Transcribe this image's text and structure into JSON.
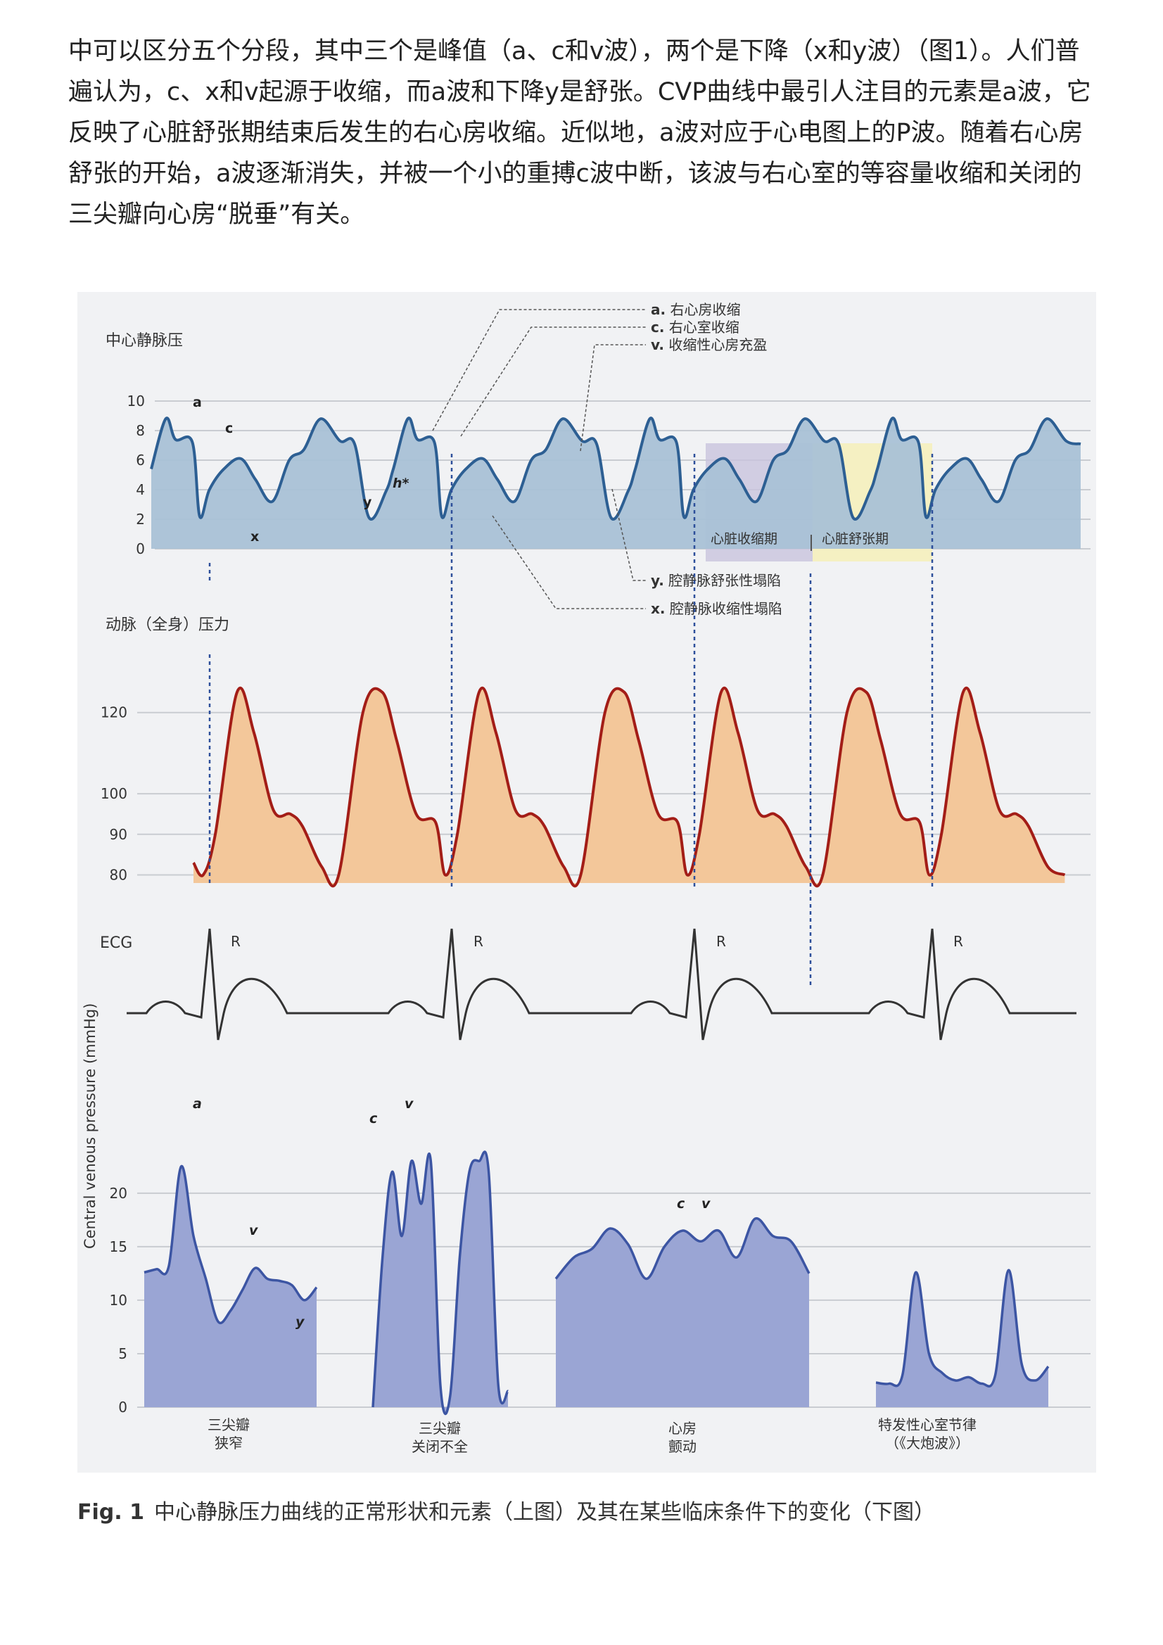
{
  "paragraph": "中可以区分五个分段，其中三个是峰值（a、c和v波），两个是下降（x和y波）（图1）。人们普遍认为，c、x和v起源于收缩，而a波和下降y是舒张。CVP曲线中最引人注目的元素是a波，它反映了心脏舒张期结束后发生的右心房收缩。近似地，a波对应于心电图上的P波。随着右心房舒张的开始，a波逐渐消失，并被一个小的重搏c波中断，该波与右心室的等容量收缩和关闭的三尖瓣向心房“脱垂”有关。",
  "figure": {
    "cvp_panel": {
      "title": "中心静脉压",
      "wave_labels": [
        "a",
        "c",
        "x",
        "y",
        "h*"
      ],
      "callouts": {
        "a": {
          "key": "a.",
          "text": "右心房收缩"
        },
        "c": {
          "key": "c.",
          "text": "右心室收缩"
        },
        "v": {
          "key": "v.",
          "text": "收缩性心房充盈"
        },
        "y": {
          "key": "y.",
          "text": "腔静脉舒张性塌陷"
        },
        "x": {
          "key": "x.",
          "text": "腔静脉收缩性塌陷"
        }
      },
      "phase_systole": "心脏收缩期",
      "phase_diastole": "心脏舒张期"
    },
    "arterial_panel": {
      "title": "动脉（全身）压力"
    },
    "ecg_panel": {
      "title": "ECG",
      "r_label": "R"
    },
    "clinical_panel": {
      "ylabel": "Central venous pressure (mmHg)",
      "labels": {
        "a": "a",
        "v": "v",
        "y": "y",
        "c": "c",
        "c2": "c",
        "v2": "v"
      },
      "groups": [
        {
          "line1": "三尖瓣",
          "line2": "狭窄"
        },
        {
          "line1": "三尖瓣",
          "line2": "关闭不全"
        },
        {
          "line1": "心房",
          "line2": "颤动"
        },
        {
          "line1": "特发性心室节律",
          "line2": "（《大炮波》）"
        }
      ]
    },
    "colors": {
      "cvp_fill": "#a9c1d6",
      "cvp_line": "#2d5f93",
      "art_fill": "#f3c79a",
      "art_line": "#a31d17",
      "ecg_line": "#333333",
      "clin_fill": "#9aa5d4",
      "clin_line": "#3c55a3",
      "diastole": "#f5f0c2",
      "systole": "#c9c3dd"
    }
  },
  "caption": {
    "label": "Fig. 1",
    "text": "中心静脉压力曲线的正常形状和元素（上图）及其在某些临床条件下的变化（下图）"
  },
  "chart_data": [
    {
      "type": "line",
      "title": "中心静脉压",
      "ylim": [
        0,
        10
      ],
      "yticks": [
        0,
        2,
        4,
        6,
        8,
        10
      ],
      "grid": true,
      "series": [
        {
          "name": "",
          "x": [
            0,
            0.06,
            0.1,
            0.17,
            0.2,
            0.24,
            0.3,
            0.37,
            0.43,
            0.5,
            0.57,
            0.63,
            0.7,
            0.78,
            0.84,
            0.9,
            0.97,
            1.0
          ],
          "values": [
            5.4,
            8.8,
            7.4,
            7.2,
            2.2,
            4.0,
            5.4,
            6.1,
            4.7,
            3.2,
            6.0,
            6.7,
            8.8,
            7.3,
            7.1,
            2.1,
            3.9,
            5.4
          ]
        }
      ],
      "annotations": [
        "a",
        "c",
        "x",
        "y",
        "h*"
      ]
    },
    {
      "type": "line",
      "title": "动脉（全身）压力",
      "ylim": [
        78,
        130
      ],
      "yticks": [
        80,
        90,
        100,
        120
      ],
      "grid": true,
      "series": [
        {
          "name": "",
          "x": [
            0,
            0.04,
            0.09,
            0.18,
            0.25,
            0.33,
            0.4,
            0.45,
            0.53,
            0.6,
            0.7,
            0.78,
            0.84,
            0.92,
            1.0
          ],
          "values": [
            83,
            80,
            90,
            125,
            115,
            96,
            95,
            92,
            82,
            80,
            120,
            125,
            113,
            95,
            93
          ]
        }
      ]
    },
    {
      "type": "line",
      "title": "ECG",
      "annotations": [
        "R",
        "R",
        "R",
        "R"
      ]
    },
    {
      "type": "area",
      "ylabel": "Central venous pressure (mmHg)",
      "ylim": [
        0,
        24
      ],
      "yticks": [
        0,
        5,
        10,
        15,
        20
      ],
      "grid": true,
      "series": [
        {
          "name": "三尖瓣狭窄",
          "values": [
            12.6,
            12.9,
            13.2,
            22.5,
            16,
            12,
            8,
            9,
            11,
            13,
            12,
            11.8,
            11.4,
            10,
            11.2
          ]
        },
        {
          "name": "三尖瓣关闭不全",
          "values": [
            0,
            14,
            22,
            16,
            23,
            19,
            23,
            2,
            1,
            14,
            22,
            23,
            22,
            2,
            1.5
          ]
        },
        {
          "name": "心房颤动",
          "values": [
            12,
            14,
            14.8,
            16.7,
            15.2,
            12,
            15,
            16.5,
            15.5,
            16.5,
            14,
            17.6,
            16,
            15.5,
            12.5
          ]
        },
        {
          "name": "特发性心室节律（《大炮波》）",
          "values": [
            2.3,
            2.2,
            3,
            12.6,
            5,
            3.2,
            2.5,
            2.8,
            2.2,
            3,
            12.8,
            4,
            2.5,
            3.8
          ]
        }
      ],
      "annotations": [
        "a",
        "v",
        "y",
        "c",
        "v",
        "c",
        "v"
      ]
    }
  ]
}
